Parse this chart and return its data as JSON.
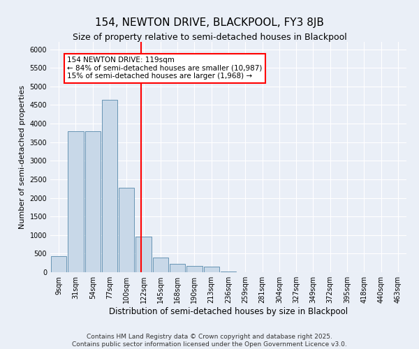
{
  "title": "154, NEWTON DRIVE, BLACKPOOL, FY3 8JB",
  "subtitle": "Size of property relative to semi-detached houses in Blackpool",
  "xlabel": "Distribution of semi-detached houses by size in Blackpool",
  "ylabel": "Number of semi-detached properties",
  "bin_labels": [
    "9sqm",
    "31sqm",
    "54sqm",
    "77sqm",
    "100sqm",
    "122sqm",
    "145sqm",
    "168sqm",
    "190sqm",
    "213sqm",
    "236sqm",
    "259sqm",
    "281sqm",
    "304sqm",
    "327sqm",
    "349sqm",
    "372sqm",
    "395sqm",
    "418sqm",
    "440sqm",
    "463sqm"
  ],
  "bar_values": [
    430,
    3800,
    3800,
    4650,
    2270,
    950,
    390,
    230,
    160,
    145,
    10,
    0,
    0,
    0,
    0,
    0,
    0,
    0,
    0,
    0,
    0
  ],
  "bar_color": "#c8d8e8",
  "bar_edge_color": "#5588aa",
  "vline_x": 4.85,
  "vline_color": "red",
  "annotation_text": "154 NEWTON DRIVE: 119sqm\n← 84% of semi-detached houses are smaller (10,987)\n15% of semi-detached houses are larger (1,968) →",
  "annotation_box_color": "white",
  "annotation_box_edge_color": "red",
  "ylim": [
    0,
    6200
  ],
  "yticks": [
    0,
    500,
    1000,
    1500,
    2000,
    2500,
    3000,
    3500,
    4000,
    4500,
    5000,
    5500,
    6000
  ],
  "footnote": "Contains HM Land Registry data © Crown copyright and database right 2025.\nContains public sector information licensed under the Open Government Licence v3.0.",
  "bg_color": "#eaeff7",
  "plot_bg_color": "#eaeff7",
  "title_fontsize": 11,
  "subtitle_fontsize": 9,
  "xlabel_fontsize": 8.5,
  "ylabel_fontsize": 8,
  "tick_fontsize": 7,
  "footnote_fontsize": 6.5,
  "annot_fontsize": 7.5
}
